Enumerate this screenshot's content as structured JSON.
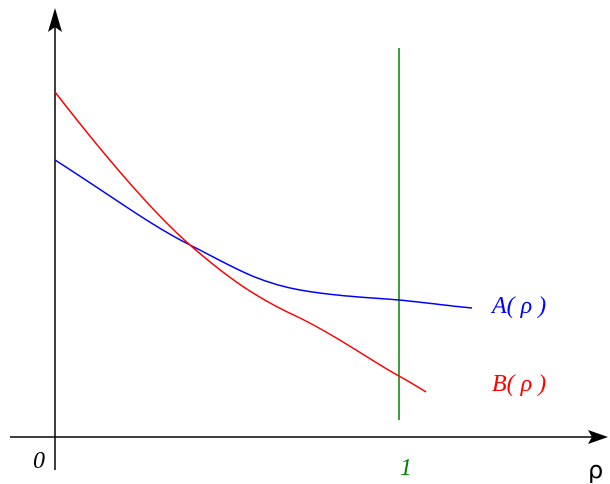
{
  "labels": {
    "origin": "0",
    "one": "1",
    "x_axis": "ρ",
    "curve_a": "A( ρ )",
    "curve_b": "B( ρ )"
  }
}
